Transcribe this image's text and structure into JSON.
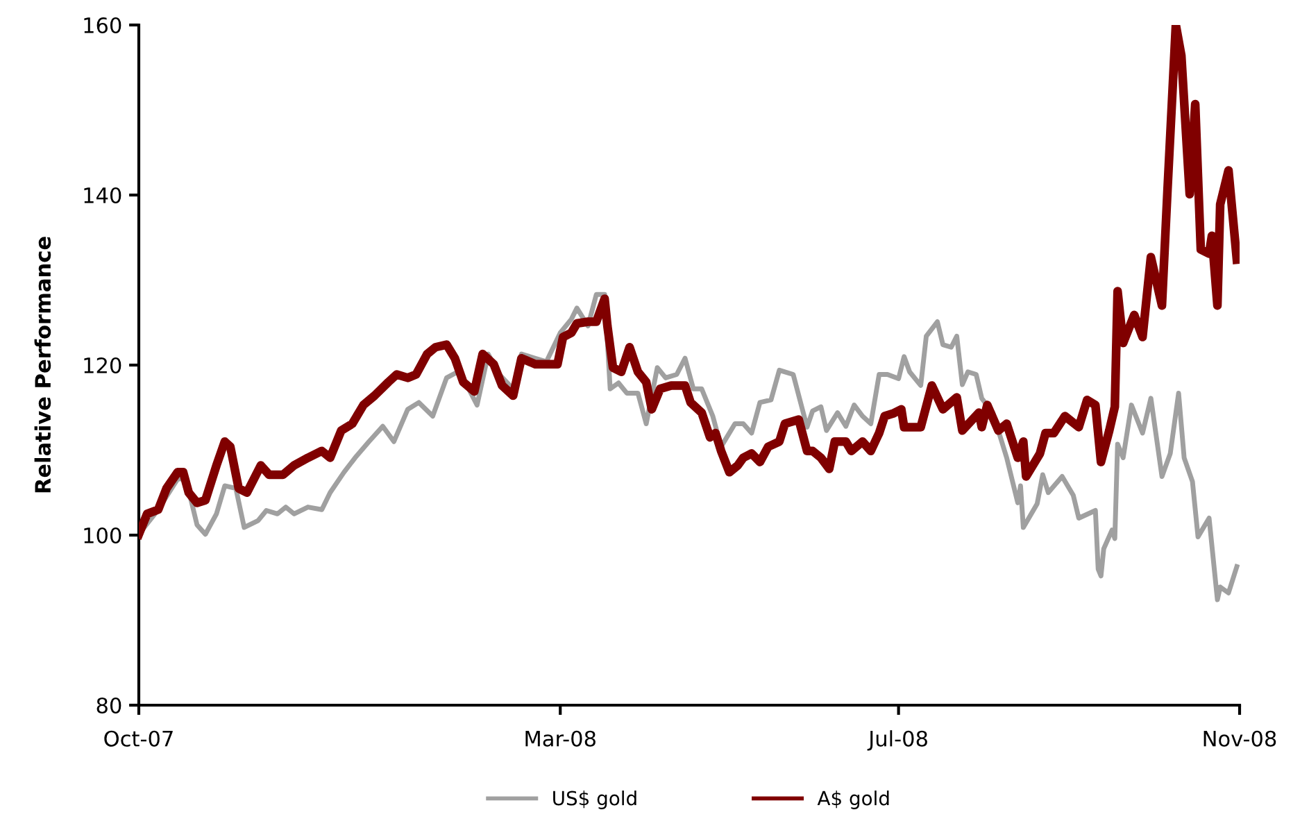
{
  "chart_data": {
    "type": "line",
    "ylabel": "Relative Performance",
    "xlim": [
      "2007-10-01",
      "2008-11-01"
    ],
    "xticks": [
      {
        "value": "2007-10-01",
        "label": "Oct-07"
      },
      {
        "value": "2008-03-01",
        "label": "Mar-08"
      },
      {
        "value": "2008-07-01",
        "label": "Jul-08"
      },
      {
        "value": "2008-11-01",
        "label": "Nov-08"
      }
    ],
    "ylim": [
      80,
      160
    ],
    "yticks": [
      80,
      100,
      120,
      140,
      160
    ],
    "grid": false,
    "legend": "bottom",
    "marker": "none",
    "line_style": "solid",
    "series": [
      {
        "name": "US$ gold",
        "color": "#a0a0a0",
        "x": [
          "2007-10-01",
          "2007-10-08",
          "2007-10-15",
          "2007-10-18",
          "2007-10-22",
          "2007-10-25",
          "2007-10-29",
          "2007-11-01",
          "2007-11-05",
          "2007-11-08",
          "2007-11-13",
          "2007-11-16",
          "2007-11-20",
          "2007-11-23",
          "2007-11-26",
          "2007-12-01",
          "2007-12-06",
          "2007-12-09",
          "2007-12-14",
          "2007-12-18",
          "2007-12-23",
          "2007-12-28",
          "2008-01-01",
          "2008-01-06",
          "2008-01-10",
          "2008-01-15",
          "2008-01-20",
          "2008-01-24",
          "2008-01-28",
          "2008-01-31",
          "2008-02-04",
          "2008-02-08",
          "2008-02-13",
          "2008-02-16",
          "2008-02-21",
          "2008-02-25",
          "2008-03-01",
          "2008-03-05",
          "2008-03-07",
          "2008-03-11",
          "2008-03-14",
          "2008-03-17",
          "2008-03-19",
          "2008-03-22",
          "2008-03-25",
          "2008-03-29",
          "2008-04-01",
          "2008-04-05",
          "2008-04-08",
          "2008-04-12",
          "2008-04-15",
          "2008-04-18",
          "2008-04-21",
          "2008-04-25",
          "2008-04-28",
          "2008-05-03",
          "2008-05-06",
          "2008-05-09",
          "2008-05-12",
          "2008-05-16",
          "2008-05-19",
          "2008-05-24",
          "2008-05-29",
          "2008-05-31",
          "2008-06-03",
          "2008-06-05",
          "2008-06-09",
          "2008-06-12",
          "2008-06-15",
          "2008-06-18",
          "2008-06-21",
          "2008-06-24",
          "2008-06-27",
          "2008-07-01",
          "2008-07-03",
          "2008-07-05",
          "2008-07-09",
          "2008-07-11",
          "2008-07-15",
          "2008-07-17",
          "2008-07-20",
          "2008-07-22",
          "2008-07-24",
          "2008-07-26",
          "2008-07-29",
          "2008-07-31",
          "2008-08-04",
          "2008-08-09",
          "2008-08-13",
          "2008-08-14",
          "2008-08-15",
          "2008-08-20",
          "2008-08-22",
          "2008-08-24",
          "2008-08-29",
          "2008-09-02",
          "2008-09-04",
          "2008-09-10",
          "2008-09-11",
          "2008-09-12",
          "2008-09-13",
          "2008-09-16",
          "2008-09-17",
          "2008-09-18",
          "2008-09-20",
          "2008-09-23",
          "2008-09-27",
          "2008-09-30",
          "2008-10-04",
          "2008-10-07",
          "2008-10-10",
          "2008-10-12",
          "2008-10-15",
          "2008-10-17",
          "2008-10-21",
          "2008-10-24",
          "2008-10-25",
          "2008-10-28",
          "2008-10-31"
        ],
        "values": [
          100.1,
          103.0,
          106.6,
          106.6,
          101.2,
          100.1,
          102.5,
          105.8,
          105.5,
          100.9,
          101.7,
          102.9,
          102.5,
          103.3,
          102.5,
          103.3,
          103.0,
          105.0,
          107.4,
          109.1,
          111.0,
          112.8,
          111.0,
          114.8,
          115.6,
          114.0,
          118.5,
          119.2,
          117.2,
          115.3,
          121.3,
          118.9,
          117.2,
          121.3,
          120.8,
          120.4,
          123.8,
          125.4,
          126.7,
          124.6,
          128.3,
          128.3,
          117.2,
          117.9,
          116.7,
          116.7,
          113.1,
          119.7,
          118.5,
          118.9,
          120.8,
          117.2,
          117.2,
          114.0,
          110.4,
          113.1,
          113.1,
          112.0,
          115.6,
          115.9,
          119.4,
          118.9,
          112.7,
          114.6,
          115.1,
          112.3,
          114.4,
          112.8,
          115.3,
          114.0,
          113.1,
          118.9,
          118.9,
          118.4,
          121.0,
          119.2,
          117.6,
          123.4,
          125.1,
          122.4,
          122.1,
          123.4,
          117.7,
          119.2,
          118.9,
          116.1,
          114.4,
          109.1,
          103.8,
          105.8,
          100.9,
          103.7,
          107.1,
          105.0,
          106.9,
          104.7,
          102.0,
          102.9,
          96.0,
          95.2,
          98.4,
          100.6,
          99.6,
          110.7,
          109.1,
          115.3,
          112.0,
          116.1,
          106.9,
          109.6,
          116.7,
          109.1,
          106.3,
          99.8,
          102.0,
          92.4,
          93.9,
          93.2,
          96.3
        ]
      },
      {
        "name": "A$ gold",
        "color": "#800000",
        "x": [
          "2007-10-01",
          "2007-10-04",
          "2007-10-08",
          "2007-10-11",
          "2007-10-15",
          "2007-10-17",
          "2007-10-19",
          "2007-10-22",
          "2007-10-25",
          "2007-10-29",
          "2007-11-01",
          "2007-11-03",
          "2007-11-06",
          "2007-11-09",
          "2007-11-14",
          "2007-11-17",
          "2007-11-22",
          "2007-11-26",
          "2007-12-01",
          "2007-12-06",
          "2007-12-09",
          "2007-12-13",
          "2007-12-17",
          "2007-12-21",
          "2007-12-25",
          "2007-12-30",
          "2008-01-02",
          "2008-01-06",
          "2008-01-09",
          "2008-01-13",
          "2008-01-16",
          "2008-01-20",
          "2008-01-23",
          "2008-01-26",
          "2008-01-30",
          "2008-02-02",
          "2008-02-06",
          "2008-02-09",
          "2008-02-13",
          "2008-02-16",
          "2008-02-21",
          "2008-02-25",
          "2008-02-29",
          "2008-03-02",
          "2008-03-05",
          "2008-03-07",
          "2008-03-11",
          "2008-03-14",
          "2008-03-17",
          "2008-03-18",
          "2008-03-20",
          "2008-03-23",
          "2008-03-26",
          "2008-03-29",
          "2008-04-01",
          "2008-04-03",
          "2008-04-06",
          "2008-04-10",
          "2008-04-13",
          "2008-04-15",
          "2008-04-17",
          "2008-04-21",
          "2008-04-24",
          "2008-04-26",
          "2008-04-28",
          "2008-05-01",
          "2008-05-04",
          "2008-05-06",
          "2008-05-09",
          "2008-05-12",
          "2008-05-15",
          "2008-05-19",
          "2008-05-21",
          "2008-05-26",
          "2008-05-29",
          "2008-05-31",
          "2008-06-03",
          "2008-06-06",
          "2008-06-08",
          "2008-06-12",
          "2008-06-14",
          "2008-06-18",
          "2008-06-21",
          "2008-06-24",
          "2008-06-26",
          "2008-06-29",
          "2008-07-02",
          "2008-07-03",
          "2008-07-09",
          "2008-07-13",
          "2008-07-17",
          "2008-07-22",
          "2008-07-24",
          "2008-07-30",
          "2008-07-31",
          "2008-08-02",
          "2008-08-06",
          "2008-08-09",
          "2008-08-13",
          "2008-08-15",
          "2008-08-16",
          "2008-08-21",
          "2008-08-23",
          "2008-08-26",
          "2008-08-30",
          "2008-09-04",
          "2008-09-07",
          "2008-09-10",
          "2008-09-12",
          "2008-09-15",
          "2008-09-17",
          "2008-09-18",
          "2008-09-20",
          "2008-09-24",
          "2008-09-27",
          "2008-09-30",
          "2008-10-04",
          "2008-10-06",
          "2008-10-09",
          "2008-10-11",
          "2008-10-14",
          "2008-10-16",
          "2008-10-18",
          "2008-10-21",
          "2008-10-22",
          "2008-10-24",
          "2008-10-25",
          "2008-10-28",
          "2008-10-31"
        ],
        "values": [
          100.1,
          102.5,
          103.0,
          105.5,
          107.4,
          107.4,
          105.0,
          103.8,
          104.1,
          108.2,
          111.0,
          110.4,
          105.5,
          105.0,
          108.2,
          107.1,
          107.1,
          108.2,
          109.1,
          109.9,
          109.1,
          112.3,
          113.1,
          115.3,
          116.4,
          118.0,
          118.9,
          118.5,
          118.9,
          121.3,
          122.1,
          122.4,
          120.8,
          118.0,
          116.9,
          121.3,
          120.1,
          117.6,
          116.4,
          120.8,
          120.1,
          120.1,
          120.1,
          123.3,
          123.8,
          124.9,
          125.1,
          125.1,
          127.8,
          124.6,
          119.7,
          119.2,
          122.1,
          119.2,
          118.0,
          114.8,
          117.2,
          117.6,
          117.6,
          117.6,
          115.6,
          114.4,
          111.5,
          112.0,
          109.9,
          107.4,
          108.2,
          109.1,
          109.6,
          108.6,
          110.4,
          111.0,
          113.1,
          113.6,
          109.9,
          109.9,
          109.1,
          107.8,
          111.0,
          111.0,
          109.9,
          111.0,
          109.9,
          112.0,
          114.0,
          114.3,
          114.8,
          112.7,
          112.7,
          117.6,
          114.8,
          116.2,
          112.3,
          114.4,
          112.7,
          115.3,
          112.3,
          113.1,
          109.1,
          111.0,
          106.9,
          109.6,
          112.0,
          112.0,
          114.0,
          112.7,
          115.9,
          115.3,
          108.6,
          112.3,
          115.1,
          128.7,
          122.6,
          125.9,
          123.3,
          132.7,
          127.0,
          140.6,
          160.0,
          156.4,
          140.1,
          150.7,
          133.6,
          133.1,
          135.2,
          127.0,
          138.9,
          142.9,
          132.4
        ]
      }
    ]
  }
}
